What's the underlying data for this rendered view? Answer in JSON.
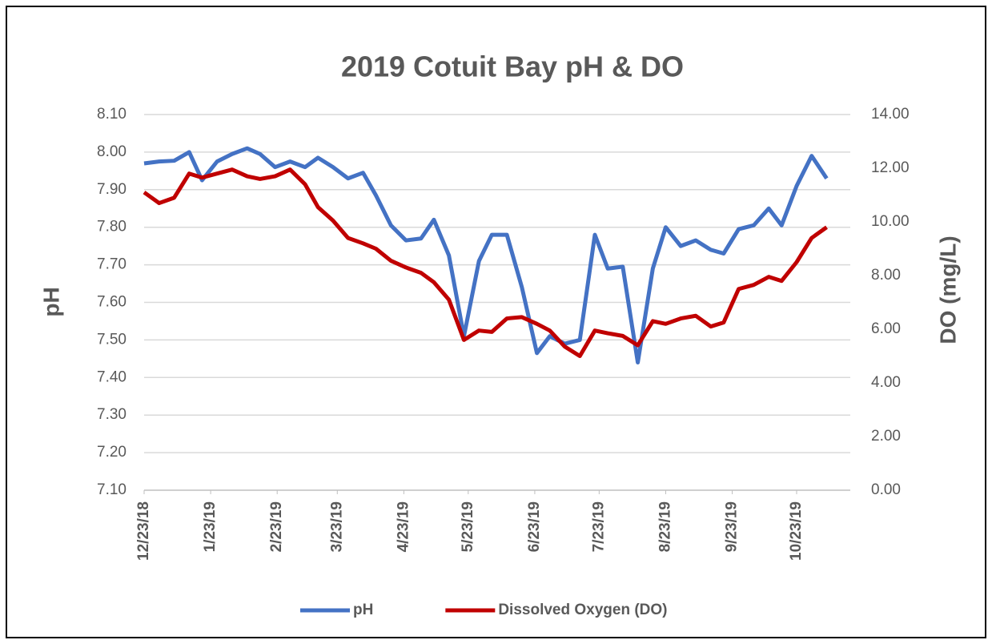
{
  "chart_data": {
    "type": "line",
    "title": "2019 Cotuit Bay pH & DO",
    "y_label": "pH",
    "y2_label": "DO (mg/L)",
    "x": [
      "12/23/18",
      "12/30/18",
      "1/6/19",
      "1/13/19",
      "1/19/19",
      "1/26/19",
      "2/2/19",
      "2/9/19",
      "2/15/19",
      "2/22/19",
      "3/1/19",
      "3/8/19",
      "3/14/19",
      "3/21/19",
      "3/28/19",
      "4/4/19",
      "4/10/19",
      "4/17/19",
      "4/24/19",
      "5/1/19",
      "5/7/19",
      "5/14/19",
      "5/21/19",
      "5/28/19",
      "6/3/19",
      "6/10/19",
      "6/17/19",
      "6/24/19",
      "6/30/19",
      "7/7/19",
      "7/14/19",
      "7/21/19",
      "7/27/19",
      "8/3/19",
      "8/10/19",
      "8/17/19",
      "8/23/19",
      "8/30/19",
      "9/6/19",
      "9/13/19",
      "9/19/19",
      "9/26/19",
      "10/3/19",
      "10/10/19",
      "10/16/19",
      "10/23/19",
      "10/30/19",
      "11/6/19"
    ],
    "series": [
      {
        "name": "pH",
        "color": "#4472c4",
        "axis": "y",
        "values": [
          7.97,
          7.975,
          7.977,
          8.0,
          7.925,
          7.975,
          7.995,
          8.01,
          7.995,
          7.96,
          7.975,
          7.96,
          7.985,
          7.96,
          7.93,
          7.945,
          7.885,
          7.805,
          7.765,
          7.77,
          7.82,
          7.725,
          7.51,
          7.71,
          7.78,
          7.78,
          7.64,
          7.465,
          7.51,
          7.49,
          7.5,
          7.78,
          7.69,
          7.695,
          7.44,
          7.69,
          7.8,
          7.75,
          7.765,
          7.74,
          7.73,
          7.795,
          7.805,
          7.85,
          7.805,
          7.91,
          7.99,
          7.93
        ]
      },
      {
        "name": "Dissolved Oxygen (DO)",
        "color": "#c00000",
        "axis": "y2",
        "values": [
          11.1,
          10.7,
          10.9,
          11.8,
          11.65,
          11.8,
          11.95,
          11.7,
          11.6,
          11.7,
          11.95,
          11.4,
          10.55,
          10.05,
          9.4,
          9.2,
          9.0,
          8.55,
          8.3,
          8.1,
          7.75,
          7.1,
          5.6,
          5.95,
          5.9,
          6.4,
          6.45,
          6.2,
          5.95,
          5.35,
          5.0,
          5.95,
          5.85,
          5.75,
          5.4,
          6.3,
          6.2,
          6.4,
          6.5,
          6.1,
          6.25,
          7.5,
          7.65,
          7.95,
          7.8,
          8.5,
          9.4,
          9.8
        ]
      }
    ],
    "xlim": [
      "12/23/18",
      "11/17/19"
    ],
    "xticks": [
      "12/23/18",
      "1/23/19",
      "2/23/19",
      "3/23/19",
      "4/23/19",
      "5/23/19",
      "6/23/19",
      "7/23/19",
      "8/23/19",
      "9/23/19",
      "10/23/19"
    ],
    "ylim": [
      7.1,
      8.1
    ],
    "yticks": [
      {
        "value": 7.1,
        "label": "7.10"
      },
      {
        "value": 7.2,
        "label": "7.20"
      },
      {
        "value": 7.3,
        "label": "7.30"
      },
      {
        "value": 7.4,
        "label": "7.40"
      },
      {
        "value": 7.5,
        "label": "7.50"
      },
      {
        "value": 7.6,
        "label": "7.60"
      },
      {
        "value": 7.7,
        "label": "7.70"
      },
      {
        "value": 7.8,
        "label": "7.80"
      },
      {
        "value": 7.9,
        "label": "7.90"
      },
      {
        "value": 8.0,
        "label": "8.00"
      },
      {
        "value": 8.1,
        "label": "8.10"
      }
    ],
    "y2lim": [
      0,
      14
    ],
    "y2ticks": [
      {
        "value": 0,
        "label": "0.00"
      },
      {
        "value": 2,
        "label": "2.00"
      },
      {
        "value": 4,
        "label": "4.00"
      },
      {
        "value": 6,
        "label": "6.00"
      },
      {
        "value": 8,
        "label": "8.00"
      },
      {
        "value": 10,
        "label": "10.00"
      },
      {
        "value": 12,
        "label": "12.00"
      },
      {
        "value": 14,
        "label": "14.00"
      }
    ],
    "grid": true,
    "legend": "bottom"
  }
}
